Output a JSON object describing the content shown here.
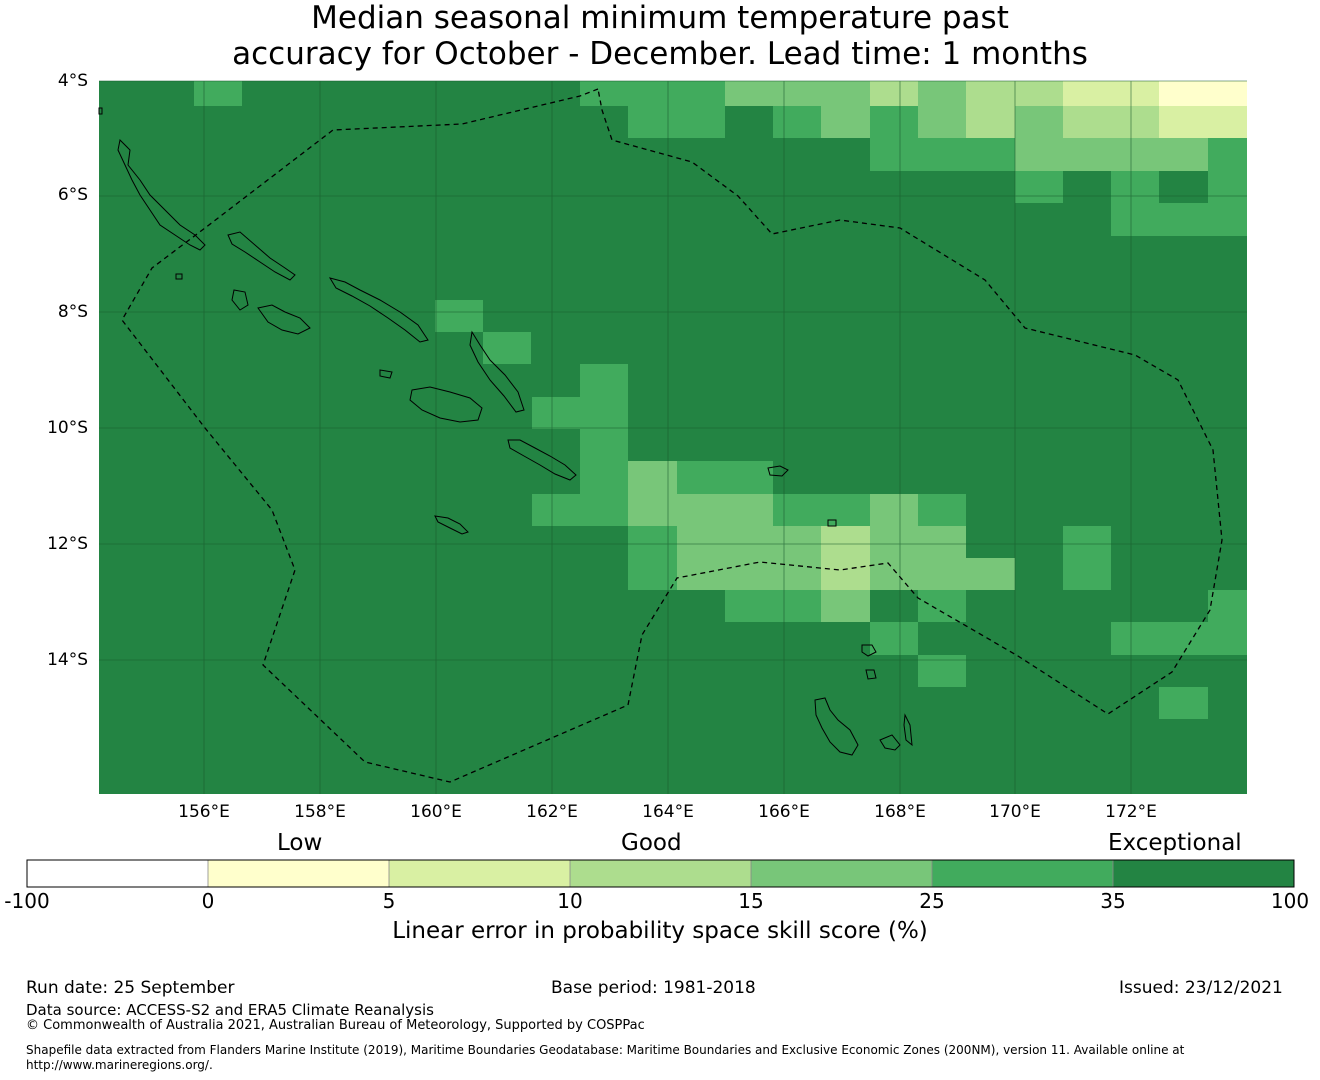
{
  "title": {
    "line1": "Median seasonal minimum temperature past",
    "line2": "accuracy for October - December. Lead time: 1 months"
  },
  "map": {
    "lat_labels": [
      "4°S",
      "6°S",
      "8°S",
      "10°S",
      "12°S",
      "14°S"
    ],
    "lon_labels": [
      "156°E",
      "158°E",
      "160°E",
      "162°E",
      "164°E",
      "166°E",
      "168°E",
      "170°E",
      "172°E"
    ],
    "extent": {
      "lon_min": 154.2,
      "lon_max": 174.0,
      "lat_min": -16.3,
      "lat_max": -4.0
    },
    "background_color": "#238443",
    "boundary_style": "dashed black line (maritime boundary / EEZ)"
  },
  "legend": {
    "categories": [
      "Low",
      "Good",
      "Exceptional"
    ],
    "ticks": [
      "-100",
      "0",
      "5",
      "10",
      "15",
      "25",
      "35",
      "100"
    ],
    "colors": [
      "#ffffff",
      "#ffffcc",
      "#d9f0a3",
      "#addd8e",
      "#78c679",
      "#41ab5d",
      "#238443"
    ],
    "label": "Linear error in probability space skill score (%)"
  },
  "footer": {
    "run_date": "Run date: 25 September",
    "base_period": "Base period: 1981-2018",
    "issued": "Issued: 23/12/2021",
    "data_source": "Data source: ACCESS-S2 and ERA5 Climate Reanalysis",
    "copyright": "© Commonwealth of Australia 2021, Australian Bureau of Meteorology, Supported by COSPPac",
    "shapefile_line1": "Shapefile data extracted from Flanders Marine Institute (2019), Maritime Boundaries Geodatabase: Maritime Boundaries and Exclusive Economic Zones (200NM), version 11. Available online at",
    "shapefile_line2": "http://www.marineregions.org/."
  }
}
